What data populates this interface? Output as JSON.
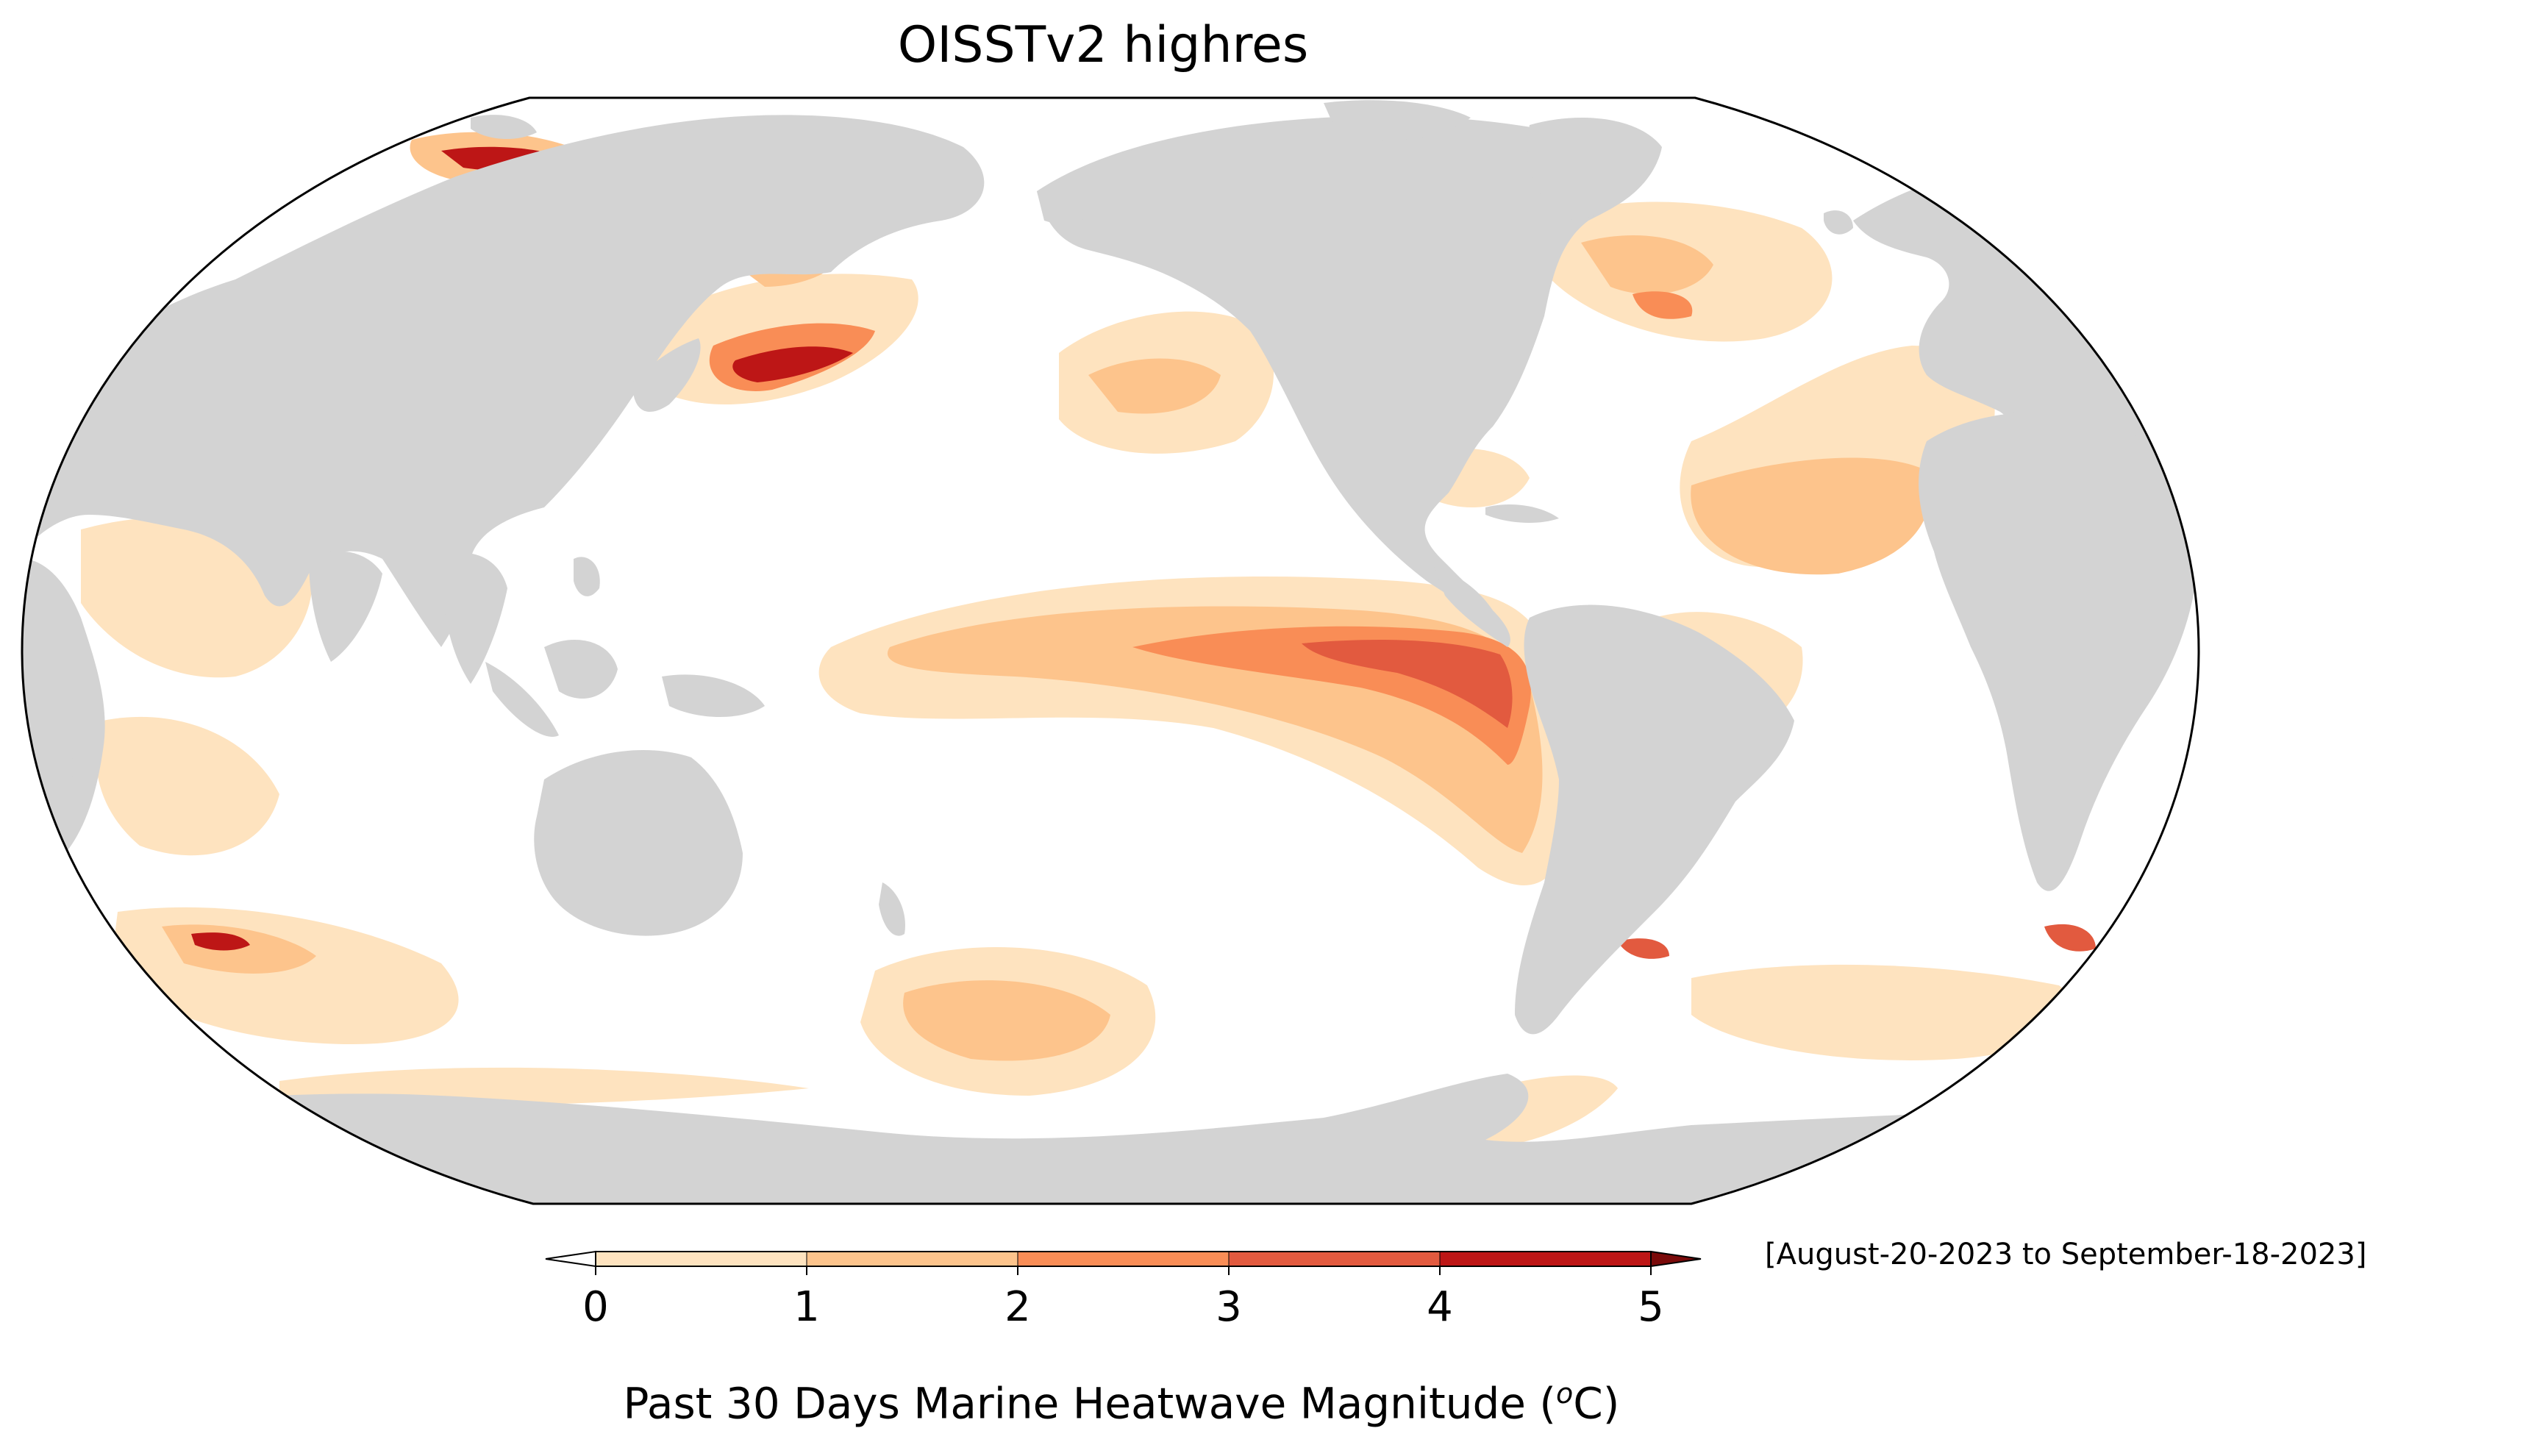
{
  "title": "OISSTv2 highres",
  "date_range": "[August-20-2023 to September-18-2023]",
  "colorbar": {
    "label_main": "Past 30 Days Marine Heatwave Magnitude (",
    "label_sup": "o",
    "label_end": "C)",
    "ticks": [
      "0",
      "1",
      "2",
      "3",
      "4",
      "5"
    ],
    "bins": [
      {
        "from": 0,
        "to": 1,
        "color": "#fee3bf"
      },
      {
        "from": 1,
        "to": 2,
        "color": "#fdc48c"
      },
      {
        "from": 2,
        "to": 3,
        "color": "#f98d56"
      },
      {
        "from": 3,
        "to": 4,
        "color": "#e25a3f"
      },
      {
        "from": 4,
        "to": 5,
        "color": "#bd1616"
      }
    ],
    "under_color": "#ffffff",
    "over_color": "#7a0a0a"
  },
  "colors": {
    "land": "#d3d3d3",
    "ocean": "#ffffff",
    "outline": "#000000"
  }
}
